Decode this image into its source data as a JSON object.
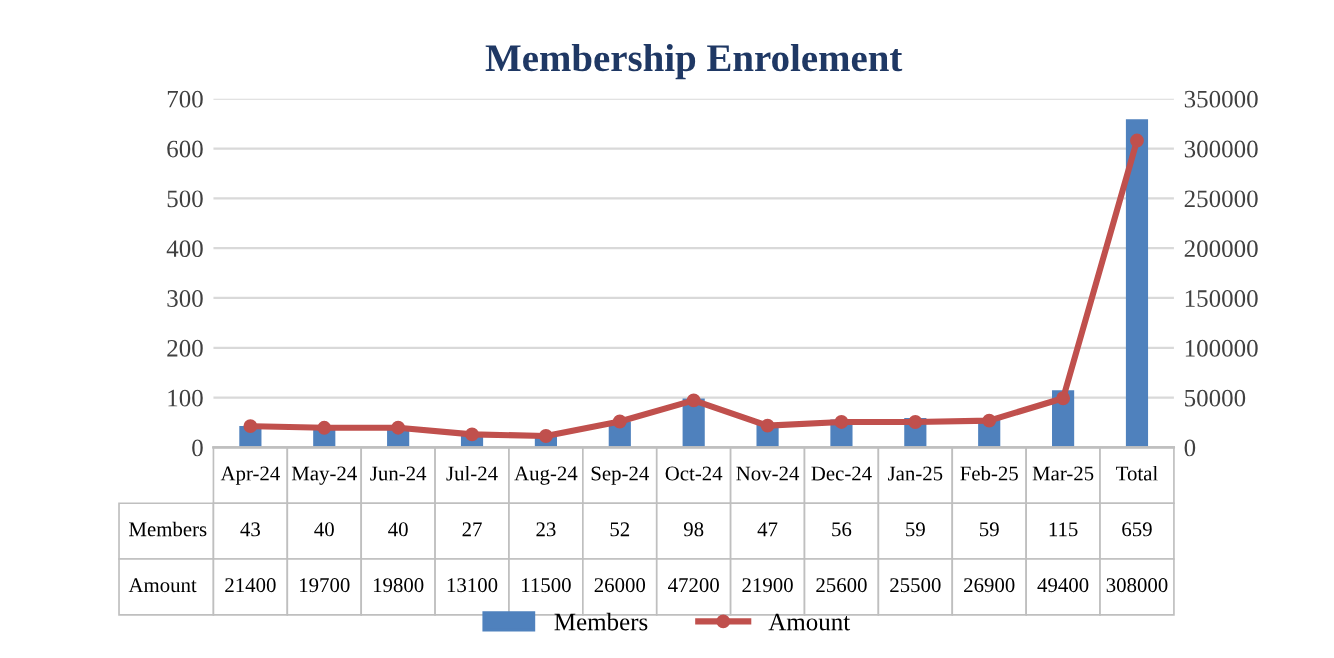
{
  "chart_data": {
    "type": "bar",
    "title": "Membership Enrolement",
    "categories": [
      "Apr-24",
      "May-24",
      "Jun-24",
      "Jul-24",
      "Aug-24",
      "Sep-24",
      "Oct-24",
      "Nov-24",
      "Dec-24",
      "Jan-25",
      "Feb-25",
      "Mar-25",
      "Total"
    ],
    "series": [
      {
        "name": "Members",
        "color": "#4f81bd",
        "values": [
          43,
          40,
          40,
          27,
          23,
          52,
          98,
          47,
          56,
          59,
          59,
          115,
          659
        ]
      },
      {
        "name": "Amount",
        "type": "line",
        "axis": "y2",
        "color": "#c0504d",
        "marker": "circle",
        "values": [
          21400,
          19700,
          19800,
          13100,
          11500,
          26000,
          47200,
          21900,
          25600,
          25500,
          26900,
          49400,
          308000
        ]
      }
    ],
    "ylim": [
      0,
      700
    ],
    "yticks": [
      0,
      100,
      200,
      300,
      400,
      500,
      600,
      700
    ],
    "y2lim": [
      0,
      350000
    ],
    "y2ticks": [
      0,
      50000,
      100000,
      150000,
      200000,
      250000,
      300000,
      350000
    ],
    "grid": "y",
    "legend": "bottom",
    "data_labels": true
  }
}
